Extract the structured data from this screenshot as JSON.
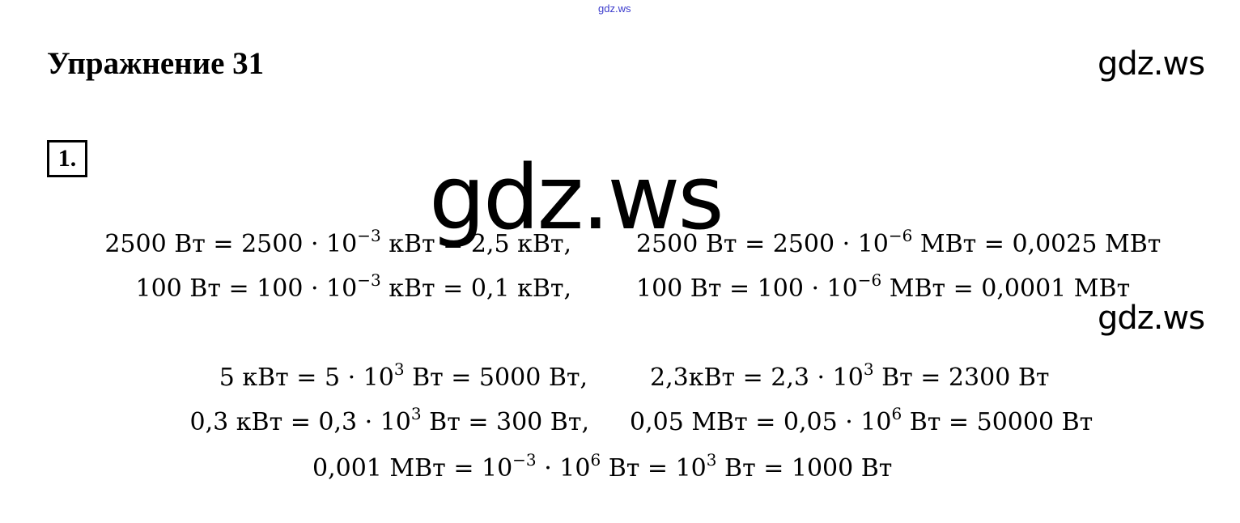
{
  "watermark_top": "gdz.ws",
  "title": "Упражнение 31",
  "brand": "gdz.ws",
  "watermark_big": "gdz.ws",
  "task_number": "1.",
  "equations": [
    [
      {
        "t": "2500 Вт = 2500 · 10"
      },
      {
        "sup": "−3"
      },
      {
        "t": " кВт = 2,5 кВт,"
      }
    ],
    [
      {
        "t": "2500 Вт = 2500 · 10"
      },
      {
        "sup": "−6"
      },
      {
        "t": " МВт = 0,0025 МВт"
      }
    ],
    [
      {
        "t": "100 Вт = 100 · 10"
      },
      {
        "sup": "−3"
      },
      {
        "t": " кВт = 0,1 кВт,"
      }
    ],
    [
      {
        "t": "100 Вт = 100 · 10"
      },
      {
        "sup": "−6"
      },
      {
        "t": " МВт = 0,0001 МВт"
      }
    ],
    [
      {
        "t": "5 кВт = 5 · 10"
      },
      {
        "sup": "3"
      },
      {
        "t": " Вт = 5000 Вт,"
      }
    ],
    [
      {
        "t": "2,3кВт = 2,3 · 10"
      },
      {
        "sup": "3"
      },
      {
        "t": " Вт = 2300 Вт"
      }
    ],
    [
      {
        "t": "0,3 кВт = 0,3 · 10"
      },
      {
        "sup": "3"
      },
      {
        "t": " Вт = 300 Вт,"
      }
    ],
    [
      {
        "t": "0,05 МВт = 0,05 · 10"
      },
      {
        "sup": "6"
      },
      {
        "t": " Вт = 50000 Вт"
      }
    ],
    [
      {
        "t": "0,001 МВт = 10"
      },
      {
        "sup": "−3"
      },
      {
        "t": " · 10"
      },
      {
        "sup": "6"
      },
      {
        "t": " Вт = 10"
      },
      {
        "sup": "3"
      },
      {
        "t": " Вт = 1000 Вт"
      }
    ]
  ]
}
